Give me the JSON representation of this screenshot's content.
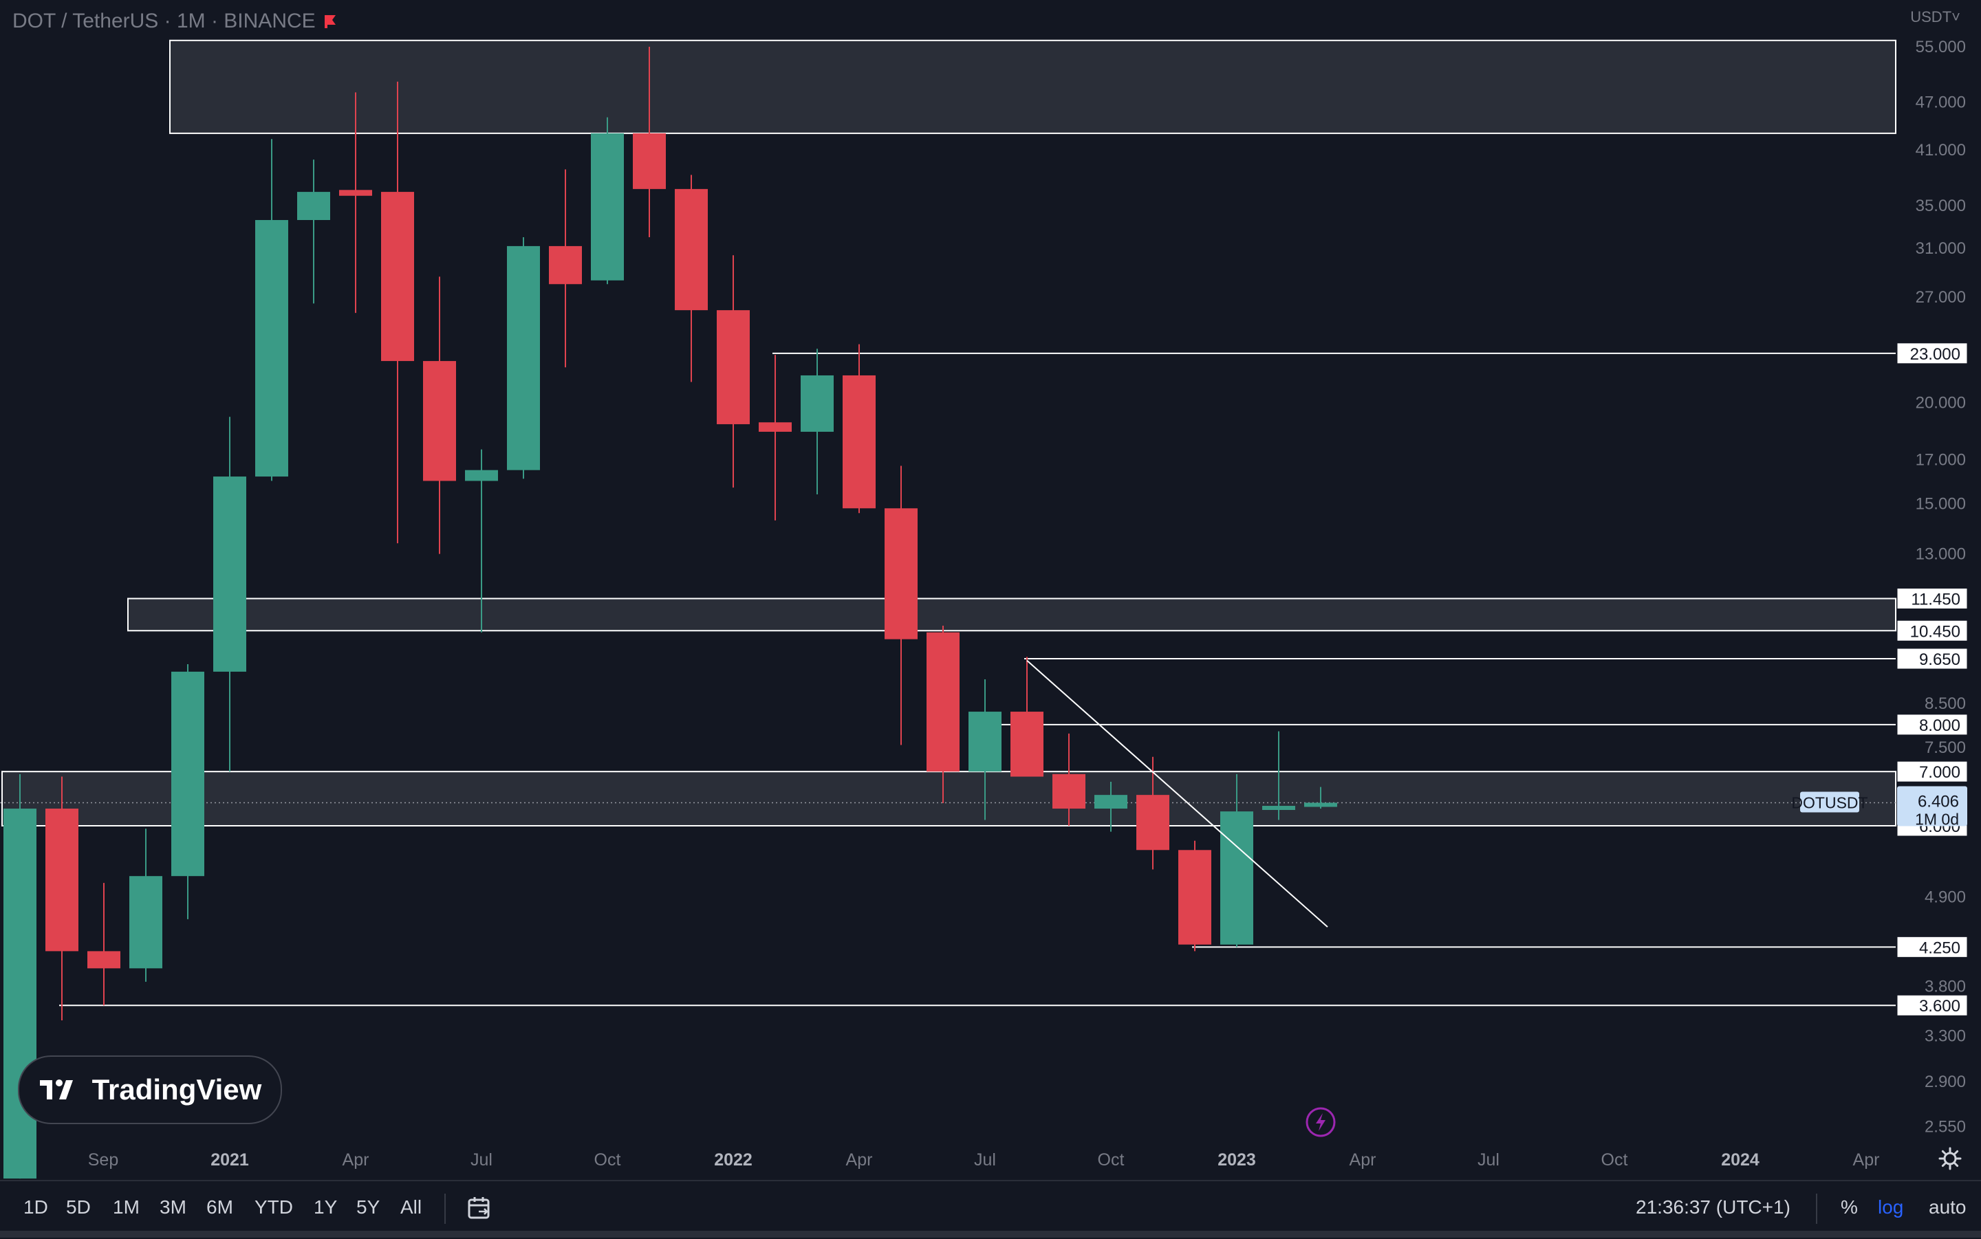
{
  "header": {
    "title": "DOT / TetherUS · 1M · BINANCE",
    "currency": "USDT",
    "flag_color": "#f23645"
  },
  "colors": {
    "background": "#131722",
    "up": "#26a69a",
    "up_candle": "#3a9b86",
    "down": "#e0434f",
    "axis_text": "#787b86",
    "line": "#ffffff",
    "zone_fill": "#2f323c",
    "price_badge": "#c9dff7"
  },
  "chart_data": {
    "type": "candlestick",
    "symbol": "DOTUSDT",
    "timeframe": "1M",
    "y_scale": "log",
    "ylim": [
      2.35,
      58
    ],
    "xlim": [
      "2020-08",
      "2024-04"
    ],
    "y_ticks": [
      "55.000",
      "47.000",
      "41.000",
      "35.000",
      "31.000",
      "27.000",
      "20.000",
      "17.000",
      "15.000",
      "13.000",
      "8.500",
      "7.500",
      "4.900",
      "3.800",
      "3.300",
      "2.900",
      "2.550"
    ],
    "x_ticks": [
      {
        "label": "Sep",
        "bold": false,
        "date": "2020-09"
      },
      {
        "label": "2021",
        "bold": true,
        "date": "2021-01"
      },
      {
        "label": "Apr",
        "bold": false,
        "date": "2021-04"
      },
      {
        "label": "Jul",
        "bold": false,
        "date": "2021-07"
      },
      {
        "label": "Oct",
        "bold": false,
        "date": "2021-10"
      },
      {
        "label": "2022",
        "bold": true,
        "date": "2022-01"
      },
      {
        "label": "Apr",
        "bold": false,
        "date": "2022-04"
      },
      {
        "label": "Jul",
        "bold": false,
        "date": "2022-07"
      },
      {
        "label": "Oct",
        "bold": false,
        "date": "2022-10"
      },
      {
        "label": "2023",
        "bold": true,
        "date": "2023-01"
      },
      {
        "label": "Apr",
        "bold": false,
        "date": "2023-04"
      },
      {
        "label": "Jul",
        "bold": false,
        "date": "2023-07"
      },
      {
        "label": "Oct",
        "bold": false,
        "date": "2023-10"
      },
      {
        "label": "2024",
        "bold": true,
        "date": "2024-01"
      },
      {
        "label": "Apr",
        "bold": false,
        "date": "2024-04"
      }
    ],
    "candles": [
      {
        "date": "2020-08",
        "o": 2.2,
        "h": 6.95,
        "l": 2.2,
        "c": 6.3
      },
      {
        "date": "2020-09",
        "o": 6.3,
        "h": 6.9,
        "l": 3.45,
        "c": 4.2
      },
      {
        "date": "2020-10",
        "o": 4.2,
        "h": 5.1,
        "l": 3.6,
        "c": 4.0
      },
      {
        "date": "2020-11",
        "o": 4.0,
        "h": 5.95,
        "l": 3.85,
        "c": 5.2
      },
      {
        "date": "2020-12",
        "o": 5.2,
        "h": 9.5,
        "l": 4.6,
        "c": 9.3
      },
      {
        "date": "2021-01",
        "o": 9.3,
        "h": 19.2,
        "l": 7.0,
        "c": 16.2
      },
      {
        "date": "2021-02",
        "o": 16.2,
        "h": 42.3,
        "l": 16.0,
        "c": 33.6
      },
      {
        "date": "2021-03",
        "o": 33.6,
        "h": 39.9,
        "l": 26.5,
        "c": 36.4
      },
      {
        "date": "2021-04",
        "o": 36.6,
        "h": 48.3,
        "l": 25.8,
        "c": 36.0
      },
      {
        "date": "2021-05",
        "o": 36.4,
        "h": 49.8,
        "l": 13.4,
        "c": 22.5
      },
      {
        "date": "2021-06",
        "o": 22.5,
        "h": 28.6,
        "l": 13.0,
        "c": 16.0
      },
      {
        "date": "2021-07",
        "o": 16.0,
        "h": 17.5,
        "l": 10.4,
        "c": 16.5
      },
      {
        "date": "2021-08",
        "o": 16.5,
        "h": 32.0,
        "l": 16.1,
        "c": 31.2
      },
      {
        "date": "2021-09",
        "o": 31.2,
        "h": 38.8,
        "l": 22.1,
        "c": 28.0
      },
      {
        "date": "2021-10",
        "o": 28.3,
        "h": 45.0,
        "l": 28.0,
        "c": 43.0
      },
      {
        "date": "2021-11",
        "o": 43.0,
        "h": 55.0,
        "l": 32.0,
        "c": 36.7
      },
      {
        "date": "2021-12",
        "o": 36.7,
        "h": 38.2,
        "l": 21.2,
        "c": 26.0
      },
      {
        "date": "2022-01",
        "o": 26.0,
        "h": 30.4,
        "l": 15.7,
        "c": 18.8
      },
      {
        "date": "2022-02",
        "o": 18.9,
        "h": 22.9,
        "l": 14.3,
        "c": 18.4
      },
      {
        "date": "2022-03",
        "o": 18.4,
        "h": 23.3,
        "l": 15.4,
        "c": 21.6
      },
      {
        "date": "2022-04",
        "o": 21.6,
        "h": 23.6,
        "l": 14.6,
        "c": 14.8
      },
      {
        "date": "2022-05",
        "o": 14.8,
        "h": 16.7,
        "l": 7.55,
        "c": 10.2
      },
      {
        "date": "2022-06",
        "o": 10.4,
        "h": 10.6,
        "l": 6.4,
        "c": 7.0
      },
      {
        "date": "2022-07",
        "o": 7.0,
        "h": 9.1,
        "l": 6.1,
        "c": 8.3
      },
      {
        "date": "2022-08",
        "o": 8.3,
        "h": 9.7,
        "l": 6.9,
        "c": 6.9
      },
      {
        "date": "2022-09",
        "o": 6.95,
        "h": 7.8,
        "l": 6.0,
        "c": 6.3
      },
      {
        "date": "2022-10",
        "o": 6.3,
        "h": 6.8,
        "l": 5.9,
        "c": 6.55
      },
      {
        "date": "2022-11",
        "o": 6.55,
        "h": 7.3,
        "l": 5.3,
        "c": 5.6
      },
      {
        "date": "2022-12",
        "o": 5.6,
        "h": 5.75,
        "l": 4.2,
        "c": 4.28
      },
      {
        "date": "2023-01",
        "o": 4.28,
        "h": 6.95,
        "l": 4.25,
        "c": 6.25
      },
      {
        "date": "2023-02",
        "o": 6.3,
        "h": 7.85,
        "l": 6.1,
        "c": 6.35
      },
      {
        "date": "2023-03",
        "o": 6.38,
        "h": 6.7,
        "l": 6.3,
        "c": 6.406
      }
    ],
    "zones": [
      {
        "from": "2020-12",
        "low": 43.0,
        "high": 56.0
      },
      {
        "from": "2020-11",
        "low": 10.45,
        "high": 11.45
      },
      {
        "from": "2020-08",
        "low": 6.0,
        "high": 7.0
      }
    ],
    "levels": [
      {
        "price": 23.0,
        "from": "2022-02",
        "label": "23.000"
      },
      {
        "price": 11.45,
        "label": "11.450"
      },
      {
        "price": 10.45,
        "label": "10.450"
      },
      {
        "price": 9.65,
        "from": "2022-08",
        "label": "9.650"
      },
      {
        "price": 8.0,
        "from": "2022-07",
        "label": "8.000"
      },
      {
        "price": 7.0,
        "label": "7.000"
      },
      {
        "price": 6.0,
        "label": "6.000"
      },
      {
        "price": 4.25,
        "from": "2022-12",
        "label": "4.250"
      },
      {
        "price": 3.6,
        "from": "2020-09",
        "label": "3.600"
      }
    ],
    "trendline": {
      "from": {
        "date": "2022-08",
        "price": 9.6
      },
      "to": {
        "date": "2023-03",
        "price": 4.5
      }
    },
    "current": {
      "symbol": "DOTUSDT",
      "price": 6.406,
      "price_label": "6.406",
      "countdown": "1M 0d"
    }
  },
  "toolbar": {
    "ranges": [
      "1D",
      "5D",
      "1M",
      "3M",
      "6M",
      "YTD",
      "1Y",
      "5Y",
      "All"
    ],
    "time": "21:36:37 (UTC+1)",
    "percent": "%",
    "log": "log",
    "auto": "auto"
  },
  "logo": {
    "text": "TradingView"
  }
}
